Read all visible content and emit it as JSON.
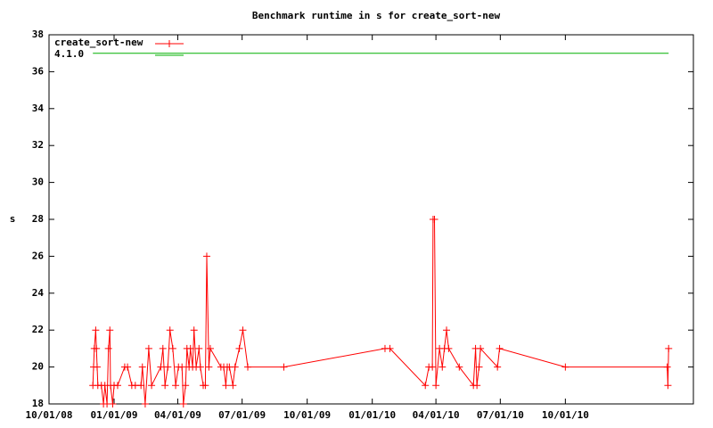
{
  "chart_data": {
    "type": "line",
    "title": "Benchmark runtime in s for create_sort-new",
    "y_label": "s",
    "xlim": [
      "2008-10-01",
      "2011-03-31"
    ],
    "xticks": [
      {
        "value": "2008-10-01",
        "label": "10/01/08"
      },
      {
        "value": "2009-01-01",
        "label": "01/01/09"
      },
      {
        "value": "2009-04-01",
        "label": "04/01/09"
      },
      {
        "value": "2009-07-01",
        "label": "07/01/09"
      },
      {
        "value": "2009-10-01",
        "label": "10/01/09"
      },
      {
        "value": "2010-01-01",
        "label": "01/01/10"
      },
      {
        "value": "2010-04-01",
        "label": "04/01/10"
      },
      {
        "value": "2010-07-01",
        "label": "07/01/10"
      },
      {
        "value": "2010-10-01",
        "label": "10/01/10"
      }
    ],
    "ylim": [
      18,
      38
    ],
    "yticks": [
      18,
      20,
      22,
      24,
      26,
      28,
      30,
      32,
      34,
      36,
      38
    ],
    "legend": "top-left",
    "series": [
      {
        "name": "create_sort-new",
        "color": "#ff0000",
        "markers": true,
        "x": [
          "2008-12-02",
          "2008-12-03",
          "2008-12-04",
          "2008-12-06",
          "2008-12-07",
          "2008-12-08",
          "2008-12-09",
          "2008-12-14",
          "2008-12-17",
          "2008-12-19",
          "2008-12-22",
          "2008-12-24",
          "2008-12-26",
          "2008-12-27",
          "2008-12-30",
          "2009-01-01",
          "2009-01-06",
          "2009-01-16",
          "2009-01-20",
          "2009-01-26",
          "2009-01-31",
          "2009-02-08",
          "2009-02-10",
          "2009-02-14",
          "2009-02-19",
          "2009-02-23",
          "2009-03-08",
          "2009-03-11",
          "2009-03-14",
          "2009-03-18",
          "2009-03-21",
          "2009-03-25",
          "2009-03-29",
          "2009-04-02",
          "2009-04-07",
          "2009-04-09",
          "2009-04-12",
          "2009-04-14",
          "2009-04-17",
          "2009-04-19",
          "2009-04-22",
          "2009-04-24",
          "2009-04-27",
          "2009-05-01",
          "2009-05-03",
          "2009-05-07",
          "2009-05-10",
          "2009-05-12",
          "2009-05-15",
          "2009-05-17",
          "2009-06-01",
          "2009-06-05",
          "2009-06-08",
          "2009-06-10",
          "2009-06-13",
          "2009-06-18",
          "2009-06-21",
          "2009-06-27",
          "2009-07-02",
          "2009-07-09",
          "2009-08-29",
          "2010-01-19",
          "2010-01-26",
          "2010-03-17",
          "2010-03-22",
          "2010-03-27",
          "2010-03-28",
          "2010-03-30",
          "2010-04-01",
          "2010-04-06",
          "2010-04-10",
          "2010-04-13",
          "2010-04-16",
          "2010-04-19",
          "2010-05-04",
          "2010-05-24",
          "2010-05-27",
          "2010-05-29",
          "2010-06-01",
          "2010-06-03",
          "2010-06-27",
          "2010-06-30",
          "2010-10-01",
          "2011-02-22",
          "2011-02-23",
          "2011-02-24"
        ],
        "values": [
          19,
          20,
          21,
          22,
          21,
          20,
          19,
          19,
          18,
          19,
          18,
          21,
          22,
          19,
          18,
          19,
          19,
          20,
          20,
          19,
          19,
          19,
          20,
          18,
          21,
          19,
          20,
          21,
          19,
          20,
          22,
          21,
          19,
          20,
          20,
          18,
          19,
          21,
          20,
          21,
          20,
          22,
          20,
          21,
          20,
          19,
          19,
          26,
          20,
          21,
          20,
          20,
          19,
          20,
          20,
          19,
          20,
          21,
          22,
          20,
          20,
          21,
          21,
          19,
          20,
          20,
          28,
          28,
          19,
          21,
          20,
          21,
          22,
          21,
          20,
          19,
          21,
          19,
          20,
          21,
          20,
          21,
          20,
          20,
          19,
          21
        ]
      },
      {
        "name": "4.1.0",
        "color": "#00b000",
        "markers": false,
        "x": [
          "2008-12-02",
          "2011-02-24"
        ],
        "values": [
          37,
          37
        ]
      }
    ]
  }
}
